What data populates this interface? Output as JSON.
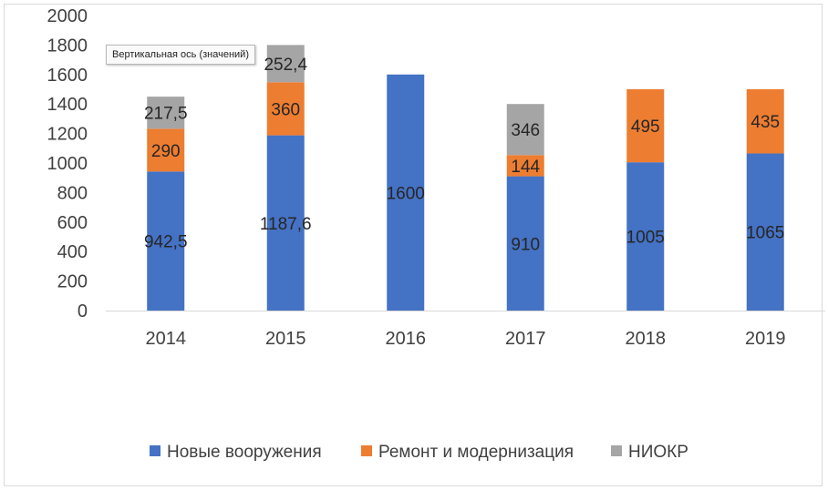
{
  "chart_data": {
    "type": "bar",
    "stacked": true,
    "categories": [
      "2014",
      "2015",
      "2016",
      "2017",
      "2018",
      "2019"
    ],
    "series": [
      {
        "name": "Новые вооружения",
        "color": "#4472C4",
        "values": [
          942.5,
          1187.6,
          1600,
          910,
          1005,
          1065
        ],
        "labels": [
          "942,5",
          "1187,6",
          "1600",
          "910",
          "1005",
          "1065"
        ]
      },
      {
        "name": "Ремонт и модернизация",
        "color": "#ED7D31",
        "values": [
          290,
          360,
          null,
          144,
          495,
          435
        ],
        "labels": [
          "290",
          "360",
          "",
          "144",
          "495",
          "435"
        ]
      },
      {
        "name": "НИОКР",
        "color": "#A5A5A5",
        "values": [
          217.5,
          252.4,
          null,
          346,
          null,
          null
        ],
        "labels": [
          "217,5",
          "252,4",
          "",
          "346",
          "",
          ""
        ]
      }
    ],
    "yticks": [
      "0",
      "200",
      "400",
      "600",
      "800",
      "1000",
      "1200",
      "1400",
      "1600",
      "1800",
      "2000"
    ],
    "ylim": [
      0,
      2000
    ],
    "grid": false,
    "legend_position": "bottom"
  },
  "tooltip": {
    "text": "Вертикальная ось (значений)"
  }
}
